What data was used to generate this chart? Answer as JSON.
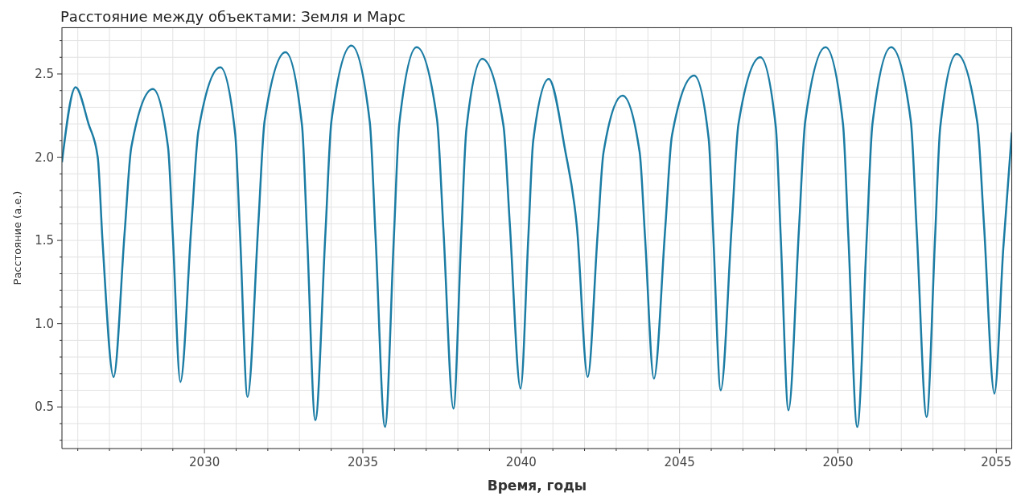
{
  "chart_data": {
    "type": "line",
    "title": "Расстояние между объектами: Земля и Марс",
    "xlabel": "Время, годы",
    "ylabel": "Расстояние (а.е.)",
    "x": [
      2025.5,
      2025.93,
      2026.34,
      2026.63,
      2026.78,
      2027.13,
      2027.48,
      2027.69,
      2028.37,
      2028.85,
      2029.0,
      2029.24,
      2029.59,
      2029.81,
      2030.5,
      2030.97,
      2031.12,
      2031.36,
      2031.7,
      2031.9,
      2032.56,
      2033.08,
      2033.24,
      2033.5,
      2033.82,
      2034.01,
      2034.64,
      2035.22,
      2035.4,
      2035.7,
      2035.98,
      2036.15,
      2036.7,
      2037.34,
      2037.54,
      2037.86,
      2038.11,
      2038.27,
      2038.77,
      2039.44,
      2039.64,
      2039.98,
      2040.23,
      2040.38,
      2040.87,
      2041.38,
      2041.76,
      2042.1,
      2042.41,
      2042.6,
      2043.2,
      2043.74,
      2043.91,
      2044.19,
      2044.55,
      2044.76,
      2045.46,
      2045.92,
      2046.06,
      2046.3,
      2046.65,
      2046.86,
      2047.55,
      2048.04,
      2048.19,
      2048.44,
      2048.77,
      2048.97,
      2049.61,
      2050.16,
      2050.33,
      2050.61,
      2050.91,
      2051.09,
      2051.68,
      2052.3,
      2052.49,
      2052.8,
      2053.07,
      2053.23,
      2053.75,
      2054.4,
      2054.61,
      2054.94,
      2055.22,
      2055.49
    ],
    "series": [
      {
        "color": "#1b7ca4",
        "values": [
          1.97,
          2.42,
          2.2,
          2.0,
          1.5,
          0.68,
          1.55,
          2.06,
          2.41,
          2.06,
          1.53,
          0.65,
          1.6,
          2.16,
          2.54,
          2.14,
          1.55,
          0.56,
          1.6,
          2.22,
          2.63,
          2.19,
          1.53,
          0.42,
          1.55,
          2.22,
          2.67,
          2.21,
          1.53,
          0.38,
          1.52,
          2.2,
          2.66,
          2.23,
          1.58,
          0.49,
          1.54,
          2.17,
          2.59,
          2.19,
          1.6,
          0.61,
          1.54,
          2.1,
          2.47,
          2.05,
          1.58,
          0.68,
          1.53,
          2.03,
          2.37,
          2.03,
          1.52,
          0.67,
          1.58,
          2.13,
          2.49,
          2.11,
          1.55,
          0.6,
          1.6,
          2.2,
          2.6,
          2.18,
          1.54,
          0.48,
          1.57,
          2.22,
          2.66,
          2.2,
          1.52,
          0.38,
          1.52,
          2.2,
          2.66,
          2.22,
          1.55,
          0.44,
          1.53,
          2.18,
          2.62,
          2.21,
          1.6,
          0.58,
          1.45,
          2.15
        ]
      }
    ],
    "xlim": [
      2025.5,
      2055.5
    ],
    "xticks": [
      {
        "value": 2026,
        "label": null
      },
      {
        "value": 2027,
        "label": null
      },
      {
        "value": 2028,
        "label": null
      },
      {
        "value": 2029,
        "label": null
      },
      2030,
      {
        "value": 2031,
        "label": null
      },
      {
        "value": 2032,
        "label": null
      },
      {
        "value": 2033,
        "label": null
      },
      {
        "value": 2034,
        "label": null
      },
      2035,
      {
        "value": 2036,
        "label": null
      },
      {
        "value": 2037,
        "label": null
      },
      {
        "value": 2038,
        "label": null
      },
      {
        "value": 2039,
        "label": null
      },
      2040,
      {
        "value": 2041,
        "label": null
      },
      {
        "value": 2042,
        "label": null
      },
      {
        "value": 2043,
        "label": null
      },
      {
        "value": 2044,
        "label": null
      },
      2045,
      {
        "value": 2046,
        "label": null
      },
      {
        "value": 2047,
        "label": null
      },
      {
        "value": 2048,
        "label": null
      },
      {
        "value": 2049,
        "label": null
      },
      2050,
      {
        "value": 2051,
        "label": null
      },
      {
        "value": 2052,
        "label": null
      },
      {
        "value": 2053,
        "label": null
      },
      {
        "value": 2054,
        "label": null
      },
      2055
    ],
    "ylim": [
      0.25,
      2.78
    ],
    "yticks": [
      {
        "value": 0.3,
        "label": null
      },
      {
        "value": 0.4,
        "label": null
      },
      {
        "value": 0.5,
        "label": "0.5"
      },
      {
        "value": 0.6,
        "label": null
      },
      {
        "value": 0.7,
        "label": null
      },
      {
        "value": 0.8,
        "label": null
      },
      {
        "value": 0.9,
        "label": null
      },
      {
        "value": 1.0,
        "label": "1.0"
      },
      {
        "value": 1.1,
        "label": null
      },
      {
        "value": 1.2,
        "label": null
      },
      {
        "value": 1.3,
        "label": null
      },
      {
        "value": 1.4,
        "label": null
      },
      {
        "value": 1.5,
        "label": "1.5"
      },
      {
        "value": 1.6,
        "label": null
      },
      {
        "value": 1.7,
        "label": null
      },
      {
        "value": 1.8,
        "label": null
      },
      {
        "value": 1.9,
        "label": null
      },
      {
        "value": 2.0,
        "label": "2.0"
      },
      {
        "value": 2.1,
        "label": null
      },
      {
        "value": 2.2,
        "label": null
      },
      {
        "value": 2.3,
        "label": null
      },
      {
        "value": 2.4,
        "label": null
      },
      {
        "value": 2.5,
        "label": "2.5"
      },
      {
        "value": 2.6,
        "label": null
      },
      {
        "value": 2.7,
        "label": null
      }
    ],
    "grid": true
  }
}
